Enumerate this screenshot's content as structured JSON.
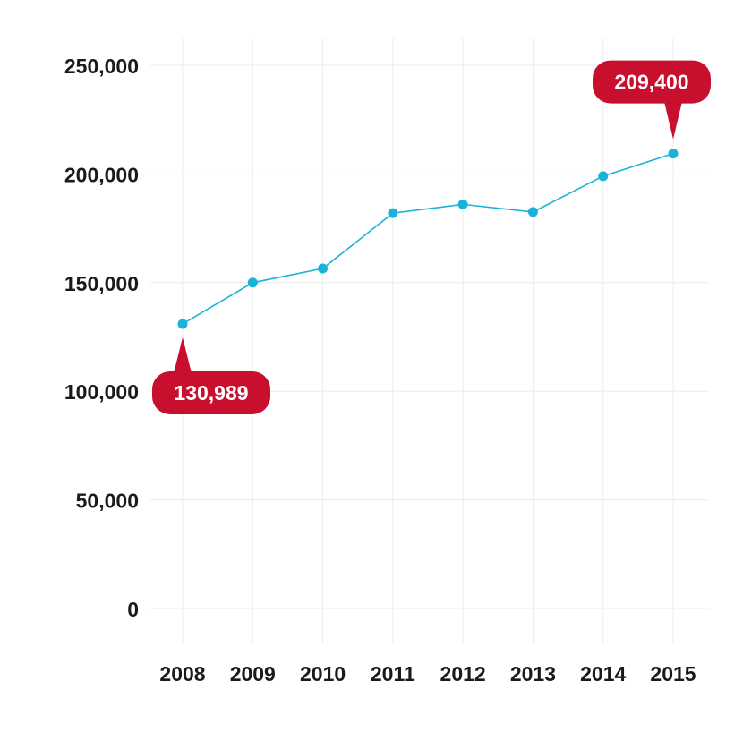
{
  "chart_data": {
    "type": "line",
    "title": "",
    "xlabel": "",
    "ylabel": "",
    "categories": [
      "2008",
      "2009",
      "2010",
      "2011",
      "2012",
      "2013",
      "2014",
      "2015"
    ],
    "series": [
      {
        "values": [
          130989,
          150000,
          156500,
          182000,
          186000,
          182500,
          199000,
          209400
        ]
      }
    ],
    "ylim": [
      0,
      250000
    ],
    "yticks": [
      0,
      50000,
      100000,
      150000,
      200000,
      250000
    ],
    "ytick_labels": [
      "0",
      "50,000",
      "100,000",
      "150,000",
      "200,000",
      "250,000"
    ],
    "grid": true,
    "legend": "none",
    "annotations": [
      {
        "category": "2008",
        "label": "130,989",
        "placement": "below"
      },
      {
        "category": "2015",
        "label": "209,400",
        "placement": "above"
      }
    ],
    "colors": {
      "line": "#1ab2d8",
      "marker": "#1ab2d8",
      "callout": "#c8102e",
      "grid": "#ececec"
    }
  }
}
